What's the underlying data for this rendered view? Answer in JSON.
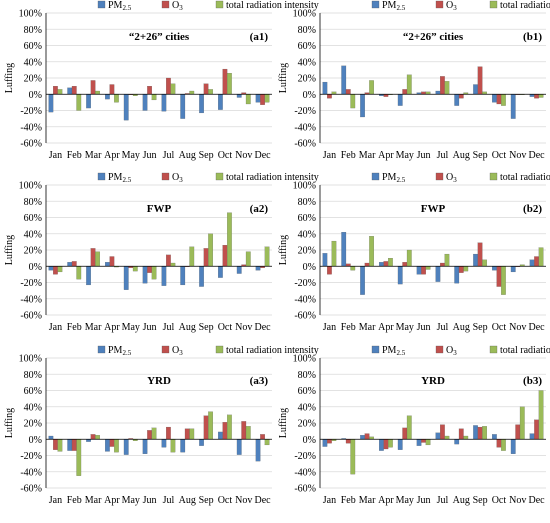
{
  "legend_labels": [
    "PM",
    "O",
    "total radiation intensity"
  ],
  "legend_subscripts": [
    "2.5",
    "3",
    ""
  ],
  "colors": {
    "pm25": "#4F81BD",
    "o3": "#C0504D",
    "rad": "#9BBB59",
    "axis": "#000000",
    "grid": "#D9D9D9"
  },
  "chart_data": [
    {
      "type": "bar",
      "panel": "(a1)",
      "title": "“2+26” cities",
      "ylabel": "Luffing",
      "ylim": [
        -60,
        100
      ],
      "yticks": [
        "-60%",
        "-40%",
        "-20%",
        "0%",
        "20%",
        "40%",
        "60%",
        "80%",
        "100%"
      ],
      "categories": [
        "Jan",
        "Feb",
        "Mar",
        "Apr",
        "May",
        "Jun",
        "Jul",
        "Aug",
        "Sep",
        "Oct",
        "Nov",
        "Dec"
      ],
      "series": [
        {
          "name": "PM2.5",
          "values": [
            -22,
            8,
            -17,
            -6,
            -32,
            -20,
            -21,
            -30,
            -23,
            -19,
            -4,
            -10
          ]
        },
        {
          "name": "O3",
          "values": [
            10,
            10,
            17,
            12,
            0,
            10,
            20,
            1,
            13,
            31,
            2,
            -13
          ]
        },
        {
          "name": "total radiation intensity",
          "values": [
            6,
            -20,
            4,
            -10,
            -2,
            -7,
            13,
            4,
            6,
            26,
            -12,
            -10
          ]
        }
      ]
    },
    {
      "type": "bar",
      "panel": "(b1)",
      "title": "“2+26” cities",
      "ylabel": "Luffing",
      "ylim": [
        -60,
        100
      ],
      "yticks": [
        "-60%",
        "-40%",
        "-20%",
        "0%",
        "20%",
        "40%",
        "60%",
        "80%",
        "100%"
      ],
      "categories": [
        "Jan",
        "Feb",
        "Mar",
        "Apr",
        "May",
        "Jun",
        "Jul",
        "Aug",
        "Sep",
        "Oct",
        "Nov",
        "Dec"
      ],
      "series": [
        {
          "name": "PM2.5",
          "values": [
            15,
            35,
            -28,
            -2,
            -14,
            2,
            4,
            -14,
            12,
            -10,
            -30,
            -3
          ]
        },
        {
          "name": "O3",
          "values": [
            -5,
            6,
            2,
            -3,
            6,
            3,
            22,
            -5,
            34,
            -12,
            0,
            -5
          ]
        },
        {
          "name": "total radiation intensity",
          "values": [
            3,
            -17,
            17,
            0,
            24,
            3,
            16,
            2,
            3,
            -14,
            0,
            -4
          ]
        }
      ]
    },
    {
      "type": "bar",
      "panel": "(a2)",
      "title": "FWP",
      "ylabel": "Luffing",
      "ylim": [
        -60,
        100
      ],
      "yticks": [
        "-60%",
        "-40%",
        "-20%",
        "0%",
        "20%",
        "40%",
        "60%",
        "80%",
        "100%"
      ],
      "categories": [
        "Jan",
        "Feb",
        "Mar",
        "Apr",
        "May",
        "Jun",
        "Jul",
        "Aug",
        "Sep",
        "Oct",
        "Nov",
        "Dec"
      ],
      "series": [
        {
          "name": "PM2.5",
          "values": [
            -5,
            5,
            -23,
            5,
            -29,
            -21,
            -24,
            -23,
            -25,
            -14,
            -9,
            -5
          ]
        },
        {
          "name": "O3",
          "values": [
            -10,
            6,
            22,
            12,
            -2,
            -8,
            14,
            0,
            22,
            26,
            2,
            -2
          ]
        },
        {
          "name": "total radiation intensity",
          "values": [
            -7,
            -16,
            18,
            -1,
            -6,
            -16,
            4,
            24,
            40,
            66,
            18,
            24
          ]
        }
      ]
    },
    {
      "type": "bar",
      "panel": "(b2)",
      "title": "FWP",
      "ylabel": "Luffing",
      "ylim": [
        -60,
        100
      ],
      "yticks": [
        "-60%",
        "-40%",
        "-20%",
        "0%",
        "20%",
        "40%",
        "60%",
        "80%",
        "100%"
      ],
      "categories": [
        "Jan",
        "Feb",
        "Mar",
        "Apr",
        "May",
        "Jun",
        "Jul",
        "Aug",
        "Sep",
        "Oct",
        "Nov",
        "Dec"
      ],
      "series": [
        {
          "name": "PM2.5",
          "values": [
            16,
            42,
            -35,
            5,
            -22,
            -10,
            -19,
            -21,
            15,
            -5,
            -7,
            8
          ]
        },
        {
          "name": "O3",
          "values": [
            -10,
            3,
            4,
            6,
            5,
            -10,
            4,
            -8,
            29,
            -25,
            0,
            12
          ]
        },
        {
          "name": "total radiation intensity",
          "values": [
            31,
            -5,
            37,
            10,
            20,
            -4,
            15,
            -6,
            8,
            -35,
            2,
            23
          ]
        }
      ]
    },
    {
      "type": "bar",
      "panel": "(a3)",
      "title": "YRD",
      "ylabel": "Luffing",
      "ylim": [
        -60,
        100
      ],
      "yticks": [
        "-60%",
        "-40%",
        "-20%",
        "0%",
        "20%",
        "40%",
        "60%",
        "80%",
        "100%"
      ],
      "categories": [
        "Jan",
        "Feb",
        "Mar",
        "Apr",
        "May",
        "Jun",
        "Jul",
        "Aug",
        "Sep",
        "Oct",
        "Nov",
        "Dec"
      ],
      "series": [
        {
          "name": "PM2.5",
          "values": [
            4,
            -14,
            -3,
            -15,
            -19,
            -18,
            -10,
            -16,
            -8,
            9,
            -19,
            -27
          ]
        },
        {
          "name": "O3",
          "values": [
            -13,
            -14,
            6,
            -9,
            1,
            11,
            15,
            13,
            29,
            21,
            22,
            6
          ]
        },
        {
          "name": "total radiation intensity",
          "values": [
            -15,
            -45,
            5,
            -16,
            -2,
            14,
            -16,
            13,
            34,
            30,
            16,
            -7
          ]
        }
      ]
    },
    {
      "type": "bar",
      "panel": "(b3)",
      "title": "YRD",
      "ylabel": "Luffing",
      "ylim": [
        -60,
        100
      ],
      "yticks": [
        "-60%",
        "-40%",
        "-20%",
        "0%",
        "20%",
        "40%",
        "60%",
        "80%",
        "100%"
      ],
      "categories": [
        "Jan",
        "Feb",
        "Mar",
        "Apr",
        "May",
        "Jun",
        "Jul",
        "Aug",
        "Sep",
        "Oct",
        "Nov",
        "Dec"
      ],
      "series": [
        {
          "name": "PM2.5",
          "values": [
            -9,
            1,
            5,
            -14,
            -13,
            -8,
            8,
            -6,
            17,
            6,
            -18,
            7
          ]
        },
        {
          "name": "O3",
          "values": [
            -5,
            -5,
            7,
            -12,
            14,
            -4,
            18,
            13,
            15,
            -10,
            18,
            24
          ]
        },
        {
          "name": "total radiation intensity",
          "values": [
            -2,
            -43,
            3,
            -10,
            29,
            -7,
            4,
            4,
            16,
            -14,
            40,
            60
          ]
        }
      ]
    }
  ]
}
